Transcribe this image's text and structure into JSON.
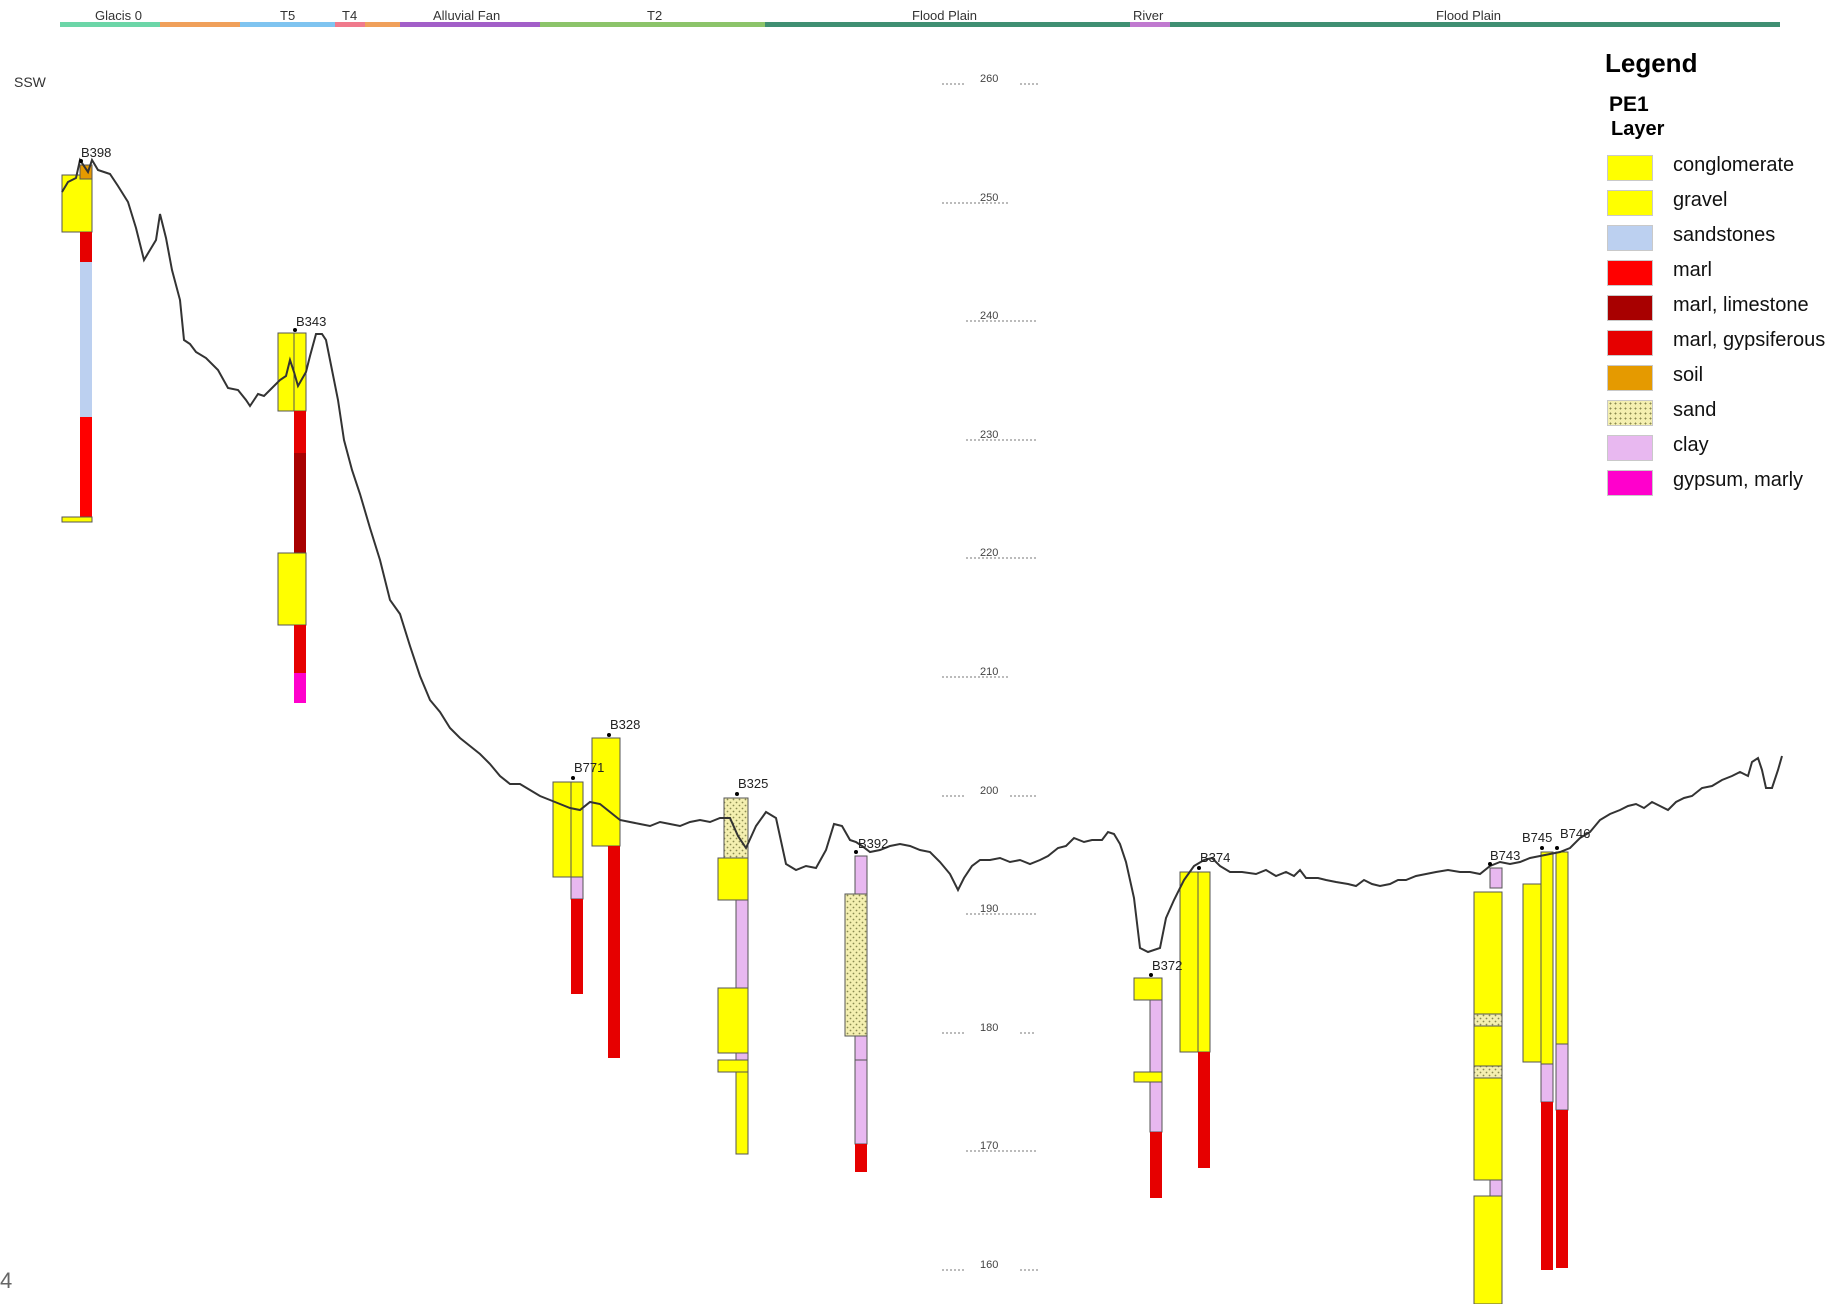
{
  "direction_label": "SSW",
  "page_number": "4",
  "units": [
    {
      "label": "Glacis 0",
      "color": "#6cd6a8"
    },
    {
      "label": "T5",
      "color": "#7fc4f0"
    },
    {
      "label": "T4",
      "color": "#f07a8c"
    },
    {
      "label": "Alluvial Fan",
      "color": "#a25fc8"
    },
    {
      "label": "T2",
      "color": "#8cc46a"
    },
    {
      "label": "Flood Plain",
      "color": "#3f8f72"
    },
    {
      "label": "River",
      "color": "#c07ad0"
    },
    {
      "label": "Flood Plain",
      "color": "#3f8f72"
    }
  ],
  "elevation_ticks": [
    "260",
    "250",
    "240",
    "230",
    "220",
    "210",
    "200",
    "190",
    "180",
    "170",
    "160"
  ],
  "boreholes": [
    "B398",
    "B343",
    "B771",
    "B328",
    "B325",
    "B392",
    "B372",
    "B374",
    "B743",
    "B745",
    "B746"
  ],
  "legend": {
    "title": "Legend",
    "subtitle": "PE1",
    "subtitle2": "Layer",
    "items": [
      {
        "label": "conglomerate",
        "color": "#ffff00"
      },
      {
        "label": "gravel",
        "color": "#ffff00"
      },
      {
        "label": "sandstones",
        "color": "#bcd0f0"
      },
      {
        "label": "marl",
        "color": "#ff0000"
      },
      {
        "label": "marl, limestone",
        "color": "#a80000"
      },
      {
        "label": "marl, gypsiferous",
        "color": "#e60000"
      },
      {
        "label": "soil",
        "color": "#e59a00"
      },
      {
        "label": "sand",
        "color": "#f4efb0"
      },
      {
        "label": "clay",
        "color": "#e8b8f0"
      },
      {
        "label": "gypsum, marly",
        "color": "#ff00cc"
      }
    ]
  }
}
